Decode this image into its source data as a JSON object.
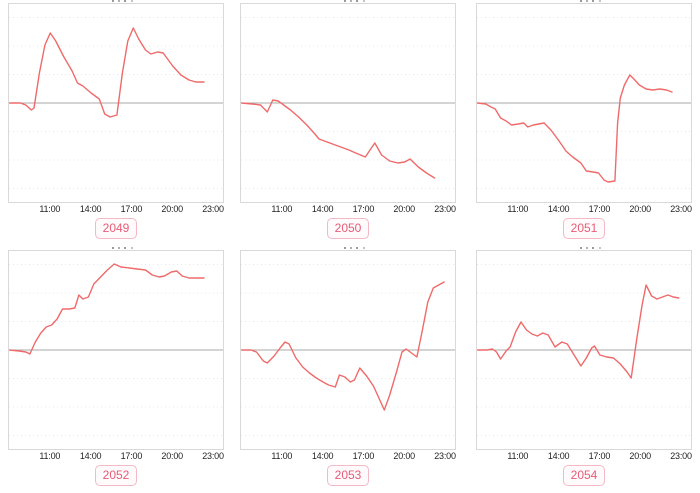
{
  "style": {
    "background": "#ffffff",
    "line_color": "#ef6a6a",
    "baseline_color": "#a9a9a9",
    "gridline_color": "#e7e7e7",
    "plot_border_color": "#d9d9d9",
    "tick_label_color": "#222222",
    "badge_text_color": "#e75c76",
    "badge_border_color": "#f5b9c6",
    "badge_background": "#fffbfc"
  },
  "chart_data": [
    {
      "type": "line",
      "badge": "2049",
      "x_ticks": [
        "11:00",
        "14:00",
        "17:00",
        "20:00",
        "23:00"
      ],
      "x_tick_hours": [
        11,
        14,
        17,
        20,
        23
      ],
      "x_range_hours": [
        8,
        23.7
      ],
      "ylim": [
        -99,
        99
      ],
      "baseline": 0,
      "grid": "dotted horizontal, solid gray zero line",
      "legend": "none",
      "points": [
        [
          8,
          0
        ],
        [
          8.8,
          0
        ],
        [
          9.2,
          -2
        ],
        [
          9.6,
          -7
        ],
        [
          9.8,
          -5
        ],
        [
          10.2,
          30
        ],
        [
          10.6,
          58
        ],
        [
          11,
          70
        ],
        [
          11.4,
          62
        ],
        [
          12,
          46
        ],
        [
          12.6,
          32
        ],
        [
          13,
          20
        ],
        [
          13.4,
          17
        ],
        [
          14,
          10
        ],
        [
          14.6,
          4
        ],
        [
          15,
          -11
        ],
        [
          15.4,
          -14
        ],
        [
          15.9,
          -12
        ],
        [
          16.3,
          30
        ],
        [
          16.7,
          62
        ],
        [
          17.1,
          75
        ],
        [
          17.5,
          64
        ],
        [
          18,
          53
        ],
        [
          18.4,
          49
        ],
        [
          18.9,
          51
        ],
        [
          19.3,
          50
        ],
        [
          20,
          37
        ],
        [
          20.6,
          28
        ],
        [
          21.2,
          23
        ],
        [
          21.7,
          21
        ],
        [
          22.3,
          21
        ]
      ]
    },
    {
      "type": "line",
      "badge": "2050",
      "x_ticks": [
        "11:00",
        "14:00",
        "17:00",
        "20:00",
        "23:00"
      ],
      "x_tick_hours": [
        11,
        14,
        17,
        20,
        23
      ],
      "x_range_hours": [
        8,
        23.7
      ],
      "ylim": [
        -99,
        99
      ],
      "baseline": 0,
      "grid": "dotted horizontal, solid gray zero line",
      "legend": "none",
      "points": [
        [
          8,
          0
        ],
        [
          8.8,
          -1
        ],
        [
          9.4,
          -2
        ],
        [
          9.9,
          -9
        ],
        [
          10.3,
          3
        ],
        [
          10.7,
          2
        ],
        [
          11.1,
          -2
        ],
        [
          11.6,
          -7
        ],
        [
          12.2,
          -14
        ],
        [
          12.8,
          -22
        ],
        [
          13.4,
          -31
        ],
        [
          13.7,
          -36
        ],
        [
          14.3,
          -39
        ],
        [
          14.9,
          -42
        ],
        [
          15.5,
          -45
        ],
        [
          15.9,
          -47
        ],
        [
          16.4,
          -50
        ],
        [
          17.1,
          -54
        ],
        [
          17.8,
          -40
        ],
        [
          18.3,
          -52
        ],
        [
          18.9,
          -58
        ],
        [
          19.5,
          -60
        ],
        [
          20,
          -59
        ],
        [
          20.4,
          -56
        ],
        [
          21,
          -64
        ],
        [
          21.6,
          -70
        ],
        [
          22.2,
          -75
        ]
      ]
    },
    {
      "type": "line",
      "badge": "2051",
      "x_ticks": [
        "11:00",
        "14:00",
        "17:00",
        "20:00",
        "23:00"
      ],
      "x_tick_hours": [
        11,
        14,
        17,
        20,
        23
      ],
      "x_range_hours": [
        8,
        23.7
      ],
      "ylim": [
        -99,
        99
      ],
      "baseline": 0,
      "grid": "dotted horizontal, solid gray zero line",
      "legend": "none",
      "points": [
        [
          8,
          0
        ],
        [
          8.6,
          -1
        ],
        [
          9,
          -4
        ],
        [
          9.3,
          -6
        ],
        [
          9.7,
          -15
        ],
        [
          10.1,
          -18
        ],
        [
          10.5,
          -22
        ],
        [
          11,
          -21
        ],
        [
          11.4,
          -20
        ],
        [
          11.7,
          -24
        ],
        [
          12.1,
          -22
        ],
        [
          12.5,
          -21
        ],
        [
          12.9,
          -20
        ],
        [
          13.4,
          -27
        ],
        [
          14,
          -38
        ],
        [
          14.5,
          -48
        ],
        [
          15,
          -54
        ],
        [
          15.6,
          -60
        ],
        [
          16,
          -68
        ],
        [
          16.5,
          -69
        ],
        [
          16.9,
          -70
        ],
        [
          17.3,
          -77
        ],
        [
          17.6,
          -79
        ],
        [
          18.1,
          -78
        ],
        [
          18.3,
          -20
        ],
        [
          18.5,
          5
        ],
        [
          18.8,
          18
        ],
        [
          19.2,
          28
        ],
        [
          19.5,
          24
        ],
        [
          19.9,
          18
        ],
        [
          20.4,
          14
        ],
        [
          20.9,
          13
        ],
        [
          21.4,
          14
        ],
        [
          21.9,
          13
        ],
        [
          22.3,
          11
        ]
      ]
    },
    {
      "type": "line",
      "badge": "2052",
      "x_ticks": [
        "11:00",
        "14:00",
        "17:00",
        "20:00",
        "23:00"
      ],
      "x_tick_hours": [
        11,
        14,
        17,
        20,
        23
      ],
      "x_range_hours": [
        8,
        23.7
      ],
      "ylim": [
        -99,
        99
      ],
      "baseline": 0,
      "grid": "dotted horizontal, solid gray zero line",
      "legend": "none",
      "points": [
        [
          8,
          0
        ],
        [
          8.7,
          -1
        ],
        [
          9.2,
          -2
        ],
        [
          9.5,
          -4
        ],
        [
          9.9,
          8
        ],
        [
          10.3,
          17
        ],
        [
          10.7,
          23
        ],
        [
          11.1,
          25
        ],
        [
          11.5,
          31
        ],
        [
          11.9,
          41
        ],
        [
          12.4,
          41
        ],
        [
          12.8,
          42
        ],
        [
          13.1,
          55
        ],
        [
          13.4,
          51
        ],
        [
          13.8,
          53
        ],
        [
          14.2,
          66
        ],
        [
          14.7,
          73
        ],
        [
          15.2,
          80
        ],
        [
          15.7,
          86
        ],
        [
          16.2,
          83
        ],
        [
          16.8,
          82
        ],
        [
          17.4,
          81
        ],
        [
          18,
          80
        ],
        [
          18.5,
          75
        ],
        [
          19,
          73
        ],
        [
          19.4,
          74
        ],
        [
          19.9,
          78
        ],
        [
          20.3,
          79
        ],
        [
          20.7,
          74
        ],
        [
          21.2,
          72
        ],
        [
          21.8,
          72
        ],
        [
          22.3,
          72
        ]
      ]
    },
    {
      "type": "line",
      "badge": "2053",
      "x_ticks": [
        "11:00",
        "14:00",
        "17:00",
        "20:00",
        "23:00"
      ],
      "x_tick_hours": [
        11,
        14,
        17,
        20,
        23
      ],
      "x_range_hours": [
        8,
        23.7
      ],
      "ylim": [
        -99,
        99
      ],
      "baseline": 0,
      "grid": "dotted horizontal, solid gray zero line",
      "legend": "none",
      "points": [
        [
          8,
          0
        ],
        [
          8.7,
          0
        ],
        [
          9.1,
          -2
        ],
        [
          9.6,
          -11
        ],
        [
          9.9,
          -13
        ],
        [
          10.4,
          -6
        ],
        [
          10.9,
          3
        ],
        [
          11.2,
          8
        ],
        [
          11.5,
          6
        ],
        [
          12,
          -8
        ],
        [
          12.5,
          -17
        ],
        [
          13,
          -23
        ],
        [
          13.5,
          -28
        ],
        [
          14,
          -32
        ],
        [
          14.4,
          -35
        ],
        [
          14.9,
          -37
        ],
        [
          15.2,
          -25
        ],
        [
          15.6,
          -27
        ],
        [
          16,
          -32
        ],
        [
          16.3,
          -30
        ],
        [
          16.7,
          -18
        ],
        [
          17.2,
          -26
        ],
        [
          17.7,
          -36
        ],
        [
          18.1,
          -48
        ],
        [
          18.5,
          -60
        ],
        [
          18.9,
          -45
        ],
        [
          19.4,
          -22
        ],
        [
          19.8,
          -2
        ],
        [
          20.1,
          1
        ],
        [
          20.5,
          -3
        ],
        [
          20.9,
          -7
        ],
        [
          21.3,
          20
        ],
        [
          21.7,
          48
        ],
        [
          22.1,
          62
        ],
        [
          22.5,
          65
        ],
        [
          22.9,
          68
        ]
      ]
    },
    {
      "type": "line",
      "badge": "2054",
      "x_ticks": [
        "11:00",
        "14:00",
        "17:00",
        "20:00",
        "23:00"
      ],
      "x_tick_hours": [
        11,
        14,
        17,
        20,
        23
      ],
      "x_range_hours": [
        8,
        23.7
      ],
      "ylim": [
        -99,
        99
      ],
      "baseline": 0,
      "grid": "dotted horizontal, solid gray zero line",
      "legend": "none",
      "points": [
        [
          8,
          0
        ],
        [
          8.7,
          0
        ],
        [
          9.1,
          1
        ],
        [
          9.4,
          -2
        ],
        [
          9.7,
          -9
        ],
        [
          10.1,
          -1
        ],
        [
          10.4,
          3
        ],
        [
          10.8,
          18
        ],
        [
          11.2,
          28
        ],
        [
          11.6,
          20
        ],
        [
          12,
          16
        ],
        [
          12.4,
          14
        ],
        [
          12.8,
          17
        ],
        [
          13.2,
          15
        ],
        [
          13.7,
          3
        ],
        [
          14.2,
          8
        ],
        [
          14.6,
          6
        ],
        [
          15.1,
          -5
        ],
        [
          15.6,
          -16
        ],
        [
          16,
          -8
        ],
        [
          16.4,
          2
        ],
        [
          16.6,
          4
        ],
        [
          17,
          -5
        ],
        [
          17.5,
          -7
        ],
        [
          18,
          -8
        ],
        [
          18.5,
          -14
        ],
        [
          19,
          -22
        ],
        [
          19.3,
          -28
        ],
        [
          19.7,
          10
        ],
        [
          20.1,
          45
        ],
        [
          20.4,
          65
        ],
        [
          20.8,
          54
        ],
        [
          21.2,
          51
        ],
        [
          21.6,
          53
        ],
        [
          22,
          55
        ],
        [
          22.4,
          53
        ],
        [
          22.8,
          52
        ]
      ]
    }
  ]
}
